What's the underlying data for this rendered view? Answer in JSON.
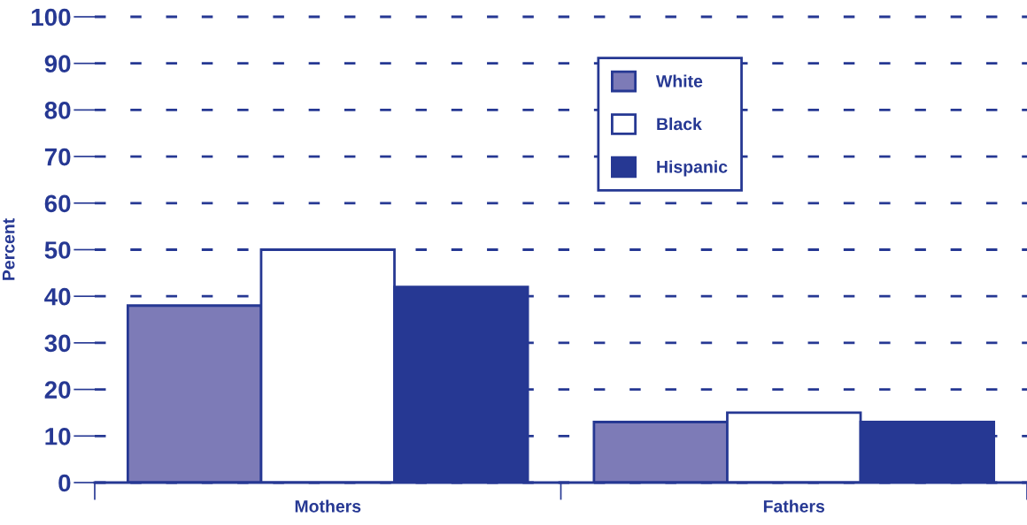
{
  "chart_data": {
    "type": "bar",
    "categories": [
      "Mothers",
      "Fathers"
    ],
    "ylabel": "Percent",
    "ylim": [
      0,
      100
    ],
    "yticks": [
      0,
      10,
      20,
      30,
      40,
      50,
      60,
      70,
      80,
      90,
      100
    ],
    "grid": "y",
    "legend": "top",
    "series": [
      {
        "name": "White",
        "color": "#7d7bb7",
        "values": [
          38,
          13
        ]
      },
      {
        "name": "Black",
        "color": "#ffffff",
        "values": [
          50,
          15
        ]
      },
      {
        "name": "Hispanic",
        "color": "#263893",
        "values": [
          42,
          13
        ]
      }
    ]
  }
}
